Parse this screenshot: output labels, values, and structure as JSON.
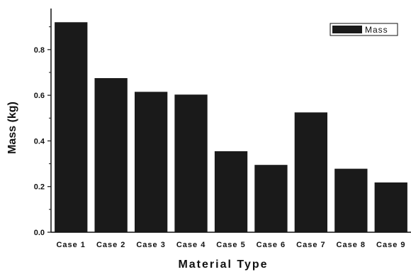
{
  "chart_data": {
    "type": "bar",
    "categories": [
      "Case 1",
      "Case 2",
      "Case 3",
      "Case 4",
      "Case 5",
      "Case 6",
      "Case 7",
      "Case 8",
      "Case 9"
    ],
    "series": [
      {
        "name": "Mass",
        "values": [
          0.92,
          0.675,
          0.615,
          0.603,
          0.355,
          0.295,
          0.525,
          0.278,
          0.218
        ]
      }
    ],
    "title": "",
    "xlabel": "Material Type",
    "ylabel": "Mass (kg)",
    "ylim": [
      0,
      0.98
    ],
    "yticks": [
      "0.0",
      "0.2",
      "0.4",
      "0.6",
      "0.8"
    ],
    "grid": false,
    "legend_position": "top-right",
    "colors": {
      "bar": "#1a1a1a",
      "axis": "#111111"
    }
  }
}
